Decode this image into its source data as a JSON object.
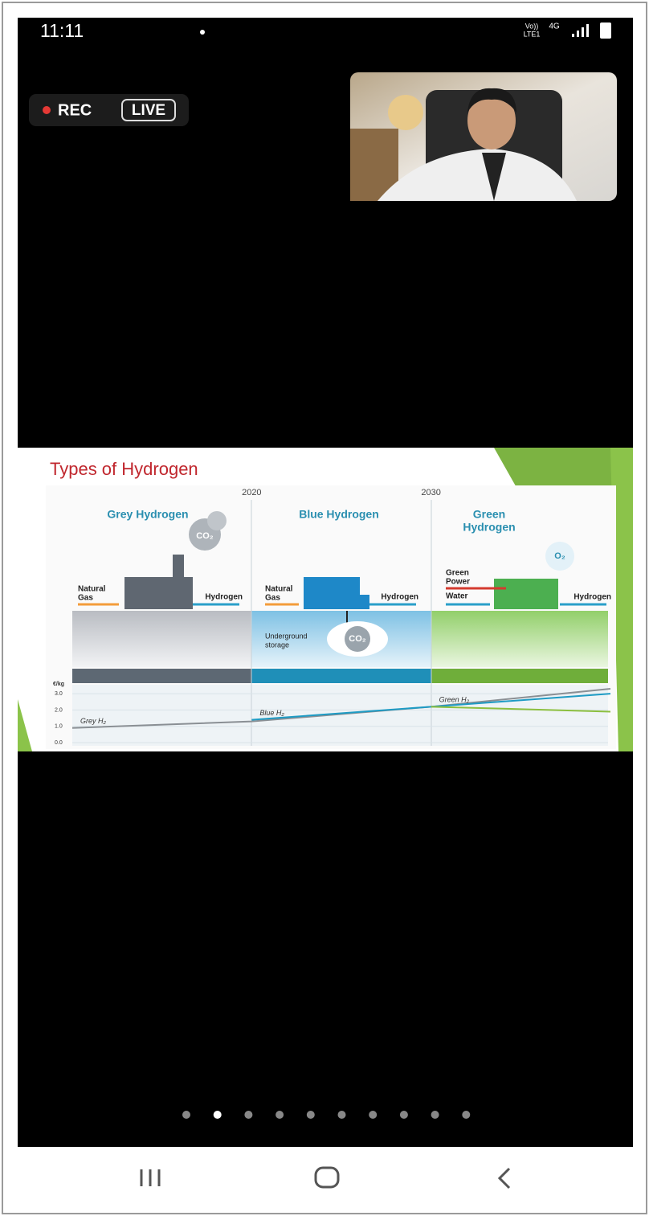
{
  "status_bar": {
    "time": "11:11",
    "network": [
      "Vo))",
      "LTE1"
    ],
    "signal": "4G"
  },
  "recording": {
    "rec": "REC",
    "live": "LIVE"
  },
  "slide": {
    "title": "Types of Hydrogen",
    "columns": [
      {
        "heading": [
          "Grey Hydrogen"
        ],
        "inputs": [
          [
            "Natural",
            "Gas"
          ]
        ],
        "output": "Hydrogen",
        "emission": "CO₂"
      },
      {
        "heading": [
          "Blue Hydrogen"
        ],
        "inputs": [
          [
            "Natural",
            "Gas"
          ]
        ],
        "output": "Hydrogen",
        "storage": [
          "Underground",
          "storage"
        ],
        "emission": "CO₂"
      },
      {
        "heading": [
          "Green",
          "Hydrogen"
        ],
        "inputs": [
          [
            "Green",
            "Power"
          ],
          [
            "Water"
          ]
        ],
        "output": "Hydrogen",
        "emission": "O₂"
      }
    ]
  },
  "chart_data": {
    "type": "line",
    "y_label": "€/kg",
    "categories": [
      null,
      "2020",
      "2030",
      null
    ],
    "series": [
      {
        "name": "Grey H₂",
        "color": "#8a8f94",
        "values": [
          0.9,
          1.3,
          2.2,
          3.3
        ]
      },
      {
        "name": "Blue H₂",
        "color": "#1e9bc4",
        "values": [
          null,
          1.4,
          2.2,
          3.0
        ]
      },
      {
        "name": "Green H₂",
        "color": "#8cbf3f",
        "values": [
          null,
          null,
          2.2,
          1.9
        ]
      }
    ],
    "ylim": [
      0,
      3.4
    ],
    "yticks": [
      {
        "value": 0,
        "label": "0.0"
      },
      {
        "value": 1,
        "label": "1.0"
      },
      {
        "value": 2,
        "label": "2.0"
      },
      {
        "value": 3,
        "label": "3.0"
      }
    ],
    "grid": true
  },
  "pagination": {
    "count": 10,
    "active": 1
  }
}
